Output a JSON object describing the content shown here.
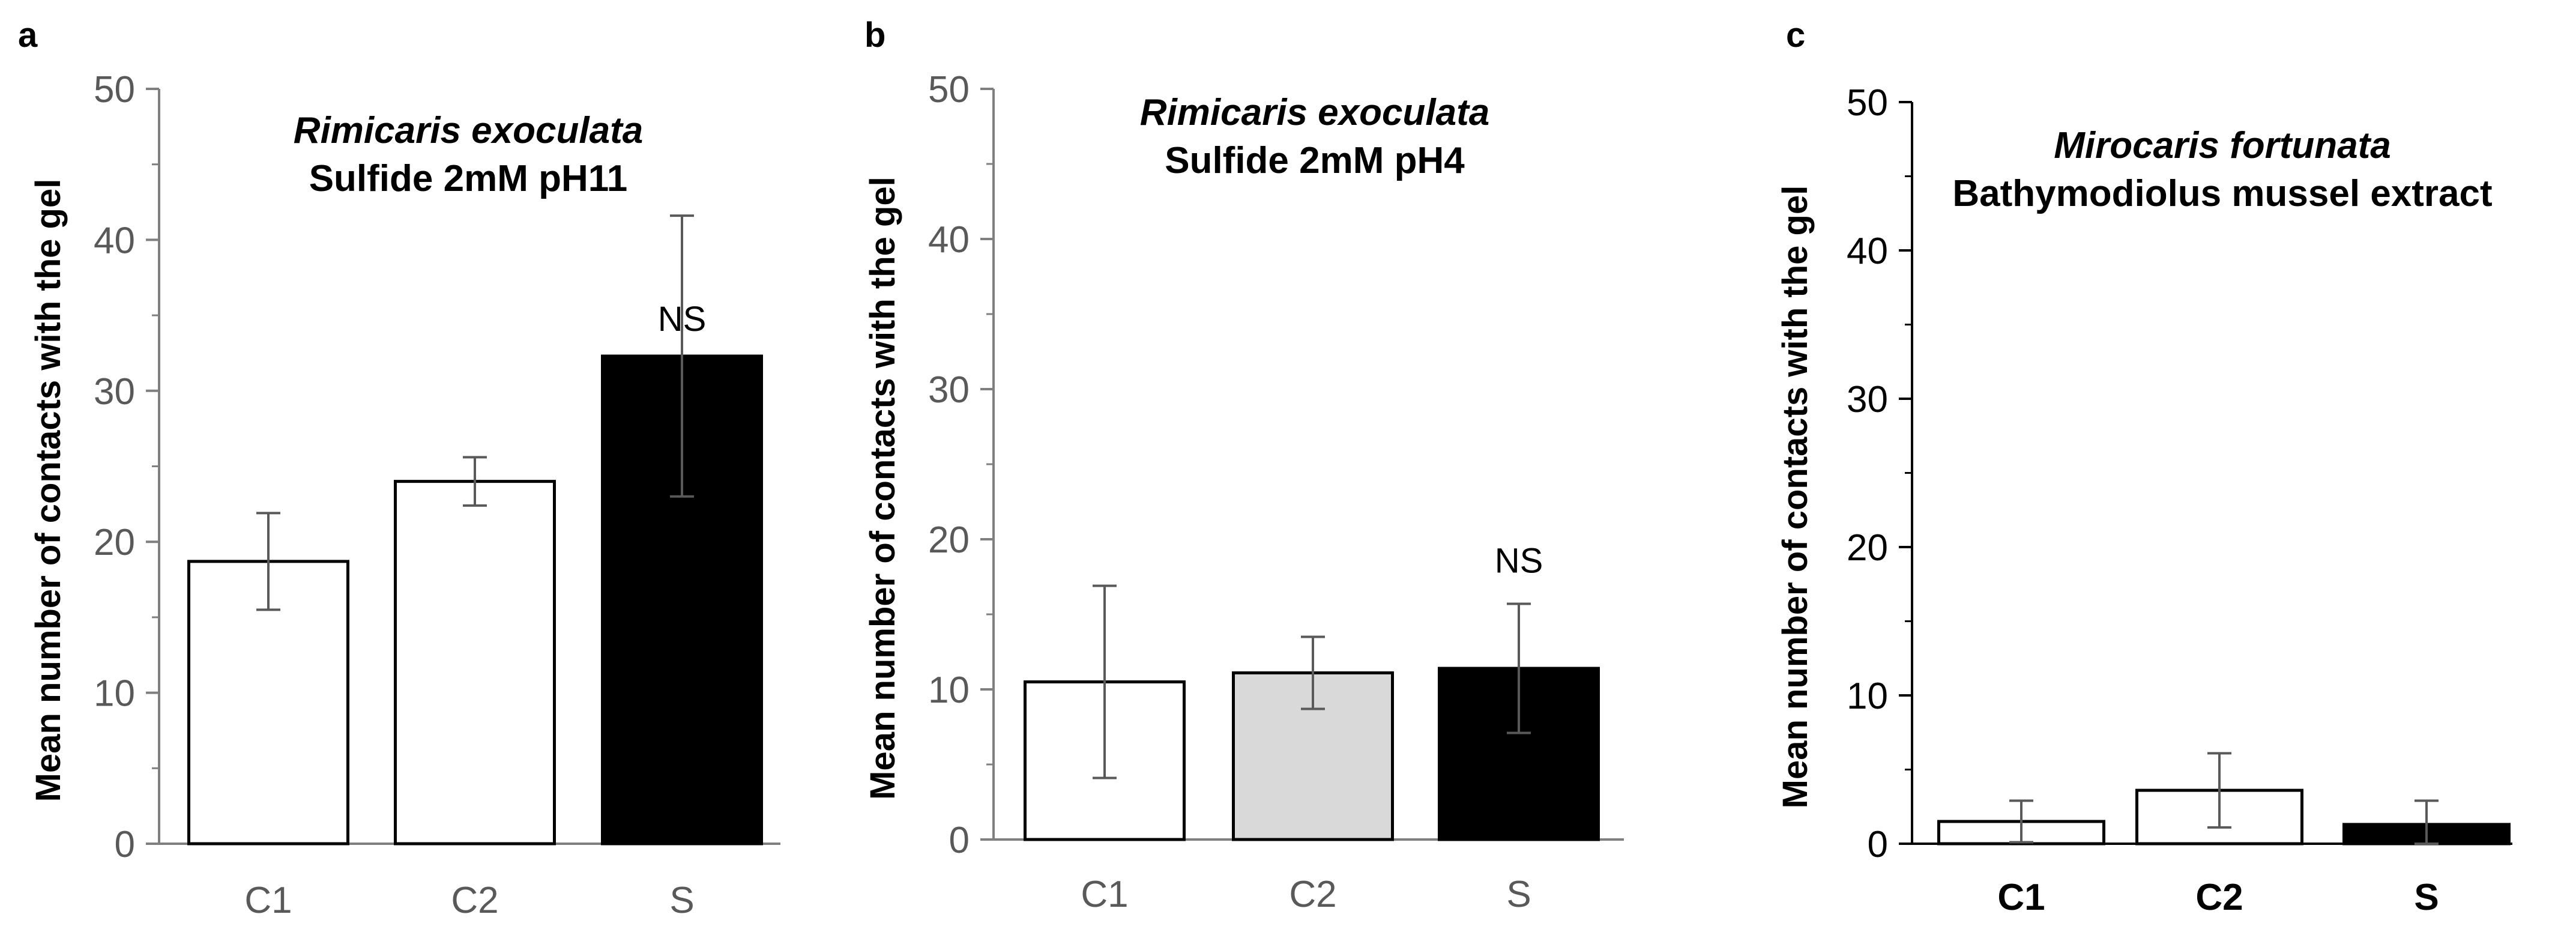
{
  "chart_data": [
    {
      "panel_label": "a",
      "type": "bar",
      "title_line1": "Rimicaris exoculata",
      "title_line2": "Sulfide 2mM pH11",
      "ylabel": "Mean number of contacts with the gel",
      "xlabel": "",
      "ylim": [
        0,
        50
      ],
      "yticks": [
        "0",
        "10",
        "20",
        "30",
        "40",
        "50"
      ],
      "categories": [
        "C1",
        "C2",
        "S"
      ],
      "values": [
        18.7,
        24.0,
        32.3
      ],
      "errors": [
        3.2,
        1.6,
        9.3
      ],
      "bar_colors": [
        "#ffffff",
        "#ffffff",
        "#000000"
      ],
      "annotations": [
        {
          "category": "S",
          "text": "NS"
        }
      ]
    },
    {
      "panel_label": "b",
      "type": "bar",
      "title_line1": "Rimicaris exoculata",
      "title_line2": "Sulfide 2mM pH4",
      "ylabel": "Mean number of contacts with the gel",
      "xlabel": "",
      "ylim": [
        0,
        50
      ],
      "yticks": [
        "0",
        "10",
        "20",
        "30",
        "40",
        "50"
      ],
      "categories": [
        "C1",
        "C2",
        "S"
      ],
      "values": [
        10.5,
        11.1,
        11.4
      ],
      "errors": [
        6.4,
        2.4,
        4.3
      ],
      "bar_colors": [
        "#ffffff",
        "#d9d9d9",
        "#000000"
      ],
      "annotations": [
        {
          "category": "S",
          "text": "NS"
        }
      ]
    },
    {
      "panel_label": "c",
      "type": "bar",
      "title_line1": "Mirocaris fortunata",
      "title_line2": "Bathymodiolus mussel extract",
      "ylabel": "Mean number of contacts with the gel",
      "xlabel": "",
      "ylim": [
        0,
        50
      ],
      "yticks": [
        "0",
        "10",
        "20",
        "30",
        "40",
        "50"
      ],
      "categories": [
        "C1",
        "C2",
        "S"
      ],
      "values": [
        1.5,
        3.6,
        1.3
      ],
      "errors": [
        1.4,
        2.5,
        1.6
      ],
      "bar_colors": [
        "#ffffff",
        "#ffffff",
        "#000000"
      ],
      "annotations": []
    }
  ]
}
